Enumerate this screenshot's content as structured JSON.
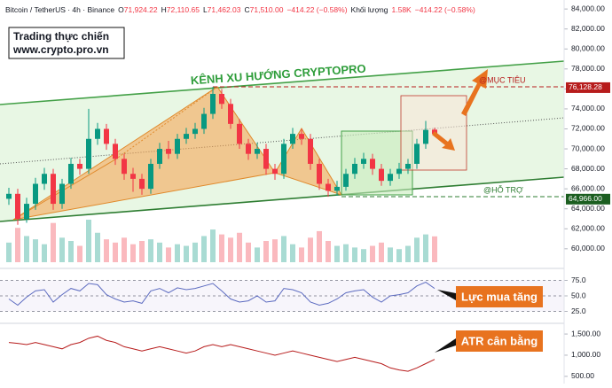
{
  "chart_data": [
    {
      "type": "candlestick",
      "title": "Bitcoin / TetherUS · 4h · Binance",
      "ohlc_legend": [
        "O",
        "71,924.22",
        "H",
        "72,110.65",
        "L",
        "71,462.03",
        "C",
        "71,510.00",
        "−414.22 (−0.58%)",
        "Khối lượng",
        "1.58K",
        "−414.22 (−0.58%)"
      ],
      "annotations": {
        "brand": "Trading thực chiến",
        "website": "www.crypto.pro.vn",
        "channel": "KÊNH XU HƯỚNG CRYPTOPRO",
        "target": "@MỤC TIÊU",
        "support": "@HỖ TRỢ"
      },
      "up_color": "#089981",
      "down_color": "#f23645",
      "open": [
        65000,
        65500,
        63000,
        64500,
        66500,
        67500,
        64500,
        66500,
        68500,
        68000,
        71000,
        72000,
        70500,
        69000,
        67500,
        67000,
        66000,
        68500,
        70000,
        69500,
        71000,
        71500,
        72000,
        73500,
        75500,
        74500,
        72500,
        70500,
        69500,
        70000,
        68000,
        67500,
        70500,
        71500,
        71000,
        68500,
        66500,
        65800,
        66200,
        67500,
        68500,
        69000,
        68000,
        66800,
        67500,
        68000,
        68500,
        70500,
        71924.22
      ],
      "high": [
        66100,
        66000,
        65100,
        67100,
        68100,
        68000,
        67000,
        69100,
        69000,
        74000,
        72600,
        72500,
        71000,
        69500,
        68100,
        67500,
        69000,
        70600,
        70800,
        71500,
        72100,
        72600,
        74100,
        76200,
        76000,
        75000,
        73000,
        71000,
        70600,
        70500,
        68500,
        71000,
        72100,
        72000,
        71500,
        69000,
        67000,
        66800,
        68000,
        69100,
        69600,
        69500,
        68500,
        68000,
        68600,
        69000,
        71000,
        72800,
        72110.65
      ],
      "low": [
        64400,
        62400,
        62600,
        63900,
        65900,
        63900,
        64000,
        66000,
        67400,
        67500,
        70400,
        69900,
        68400,
        66900,
        65700,
        65400,
        65500,
        68000,
        69000,
        69000,
        70500,
        71000,
        71500,
        73000,
        74000,
        72000,
        70000,
        68900,
        69000,
        67400,
        66900,
        67000,
        70000,
        70400,
        67900,
        65900,
        65200,
        65300,
        65800,
        67000,
        68000,
        67400,
        66300,
        66300,
        67000,
        67500,
        68000,
        70000,
        71462.03
      ],
      "close": [
        65500,
        63000,
        64500,
        66500,
        67500,
        64500,
        66500,
        68500,
        68000,
        71000,
        72000,
        70500,
        69000,
        67500,
        67000,
        66000,
        68500,
        70000,
        69500,
        71000,
        71500,
        72000,
        73500,
        75500,
        74500,
        72500,
        70500,
        69500,
        70000,
        68000,
        67500,
        70500,
        71500,
        71000,
        68500,
        66500,
        65800,
        66200,
        67500,
        68500,
        69000,
        68000,
        66800,
        67500,
        68000,
        68500,
        70500,
        71900,
        71510
      ],
      "volume": [
        1.2,
        2.1,
        1.6,
        1.4,
        1.1,
        2.4,
        1.5,
        1.3,
        1.0,
        2.6,
        1.8,
        1.4,
        1.2,
        1.5,
        1.1,
        1.3,
        1.4,
        1.2,
        0.9,
        1.1,
        1.0,
        1.2,
        1.6,
        2.0,
        1.7,
        1.5,
        1.8,
        1.2,
        0.9,
        1.3,
        1.4,
        1.6,
        1.1,
        0.9,
        1.5,
        1.9,
        1.3,
        1.0,
        1.1,
        0.9,
        0.8,
        1.0,
        1.2,
        0.9,
        0.8,
        1.0,
        1.5,
        1.7,
        1.58
      ],
      "ylim": [
        58300,
        84900
      ],
      "yticks": [
        {
          "value": 60000,
          "label": "60,000.00"
        },
        {
          "value": 62000,
          "label": "62,000.00"
        },
        {
          "value": 64000,
          "label": "64,000.00"
        },
        {
          "value": 66000,
          "label": "66,000.00"
        },
        {
          "value": 68000,
          "label": "68,000.00"
        },
        {
          "value": 70000,
          "label": "70,000.00"
        },
        {
          "value": 72000,
          "label": "72,000.00"
        },
        {
          "value": 74000,
          "label": "74,000.00"
        },
        {
          "value": 76000,
          "label": "76,000.00"
        },
        {
          "value": 78000,
          "label": "78,000.00"
        },
        {
          "value": 80000,
          "label": "80,000.00"
        },
        {
          "value": 82000,
          "label": "82,000.00"
        },
        {
          "value": 84000,
          "label": "84,000.00"
        }
      ],
      "price_tags": [
        {
          "value": 76128.28,
          "label": "76,128.28",
          "color": "#b71c1c"
        },
        {
          "value": 64966,
          "label": "64,966.00",
          "color": "#1b5e20"
        }
      ]
    },
    {
      "type": "line",
      "annotation": "Lực mua tăng",
      "color": "#5c6bc0",
      "values": [
        45,
        35,
        48,
        58,
        60,
        40,
        52,
        62,
        58,
        70,
        68,
        52,
        45,
        40,
        42,
        38,
        58,
        62,
        55,
        63,
        60,
        62,
        66,
        70,
        58,
        45,
        40,
        42,
        50,
        40,
        42,
        62,
        60,
        55,
        40,
        35,
        38,
        45,
        55,
        58,
        60,
        48,
        40,
        50,
        52,
        55,
        66,
        72,
        62
      ],
      "ylim": [
        10,
        90
      ],
      "yticks": [
        {
          "value": 75,
          "label": "75.0"
        },
        {
          "value": 50,
          "label": "50.0"
        },
        {
          "value": 25,
          "label": "25.0"
        }
      ]
    },
    {
      "type": "line",
      "annotation": "ATR cân bằng",
      "color": "#b71c1c",
      "values": [
        1300,
        1280,
        1250,
        1300,
        1250,
        1200,
        1150,
        1250,
        1300,
        1400,
        1450,
        1350,
        1300,
        1200,
        1150,
        1100,
        1150,
        1200,
        1150,
        1100,
        1050,
        1100,
        1200,
        1250,
        1200,
        1250,
        1200,
        1150,
        1100,
        1050,
        1000,
        1050,
        1100,
        1050,
        1000,
        950,
        900,
        850,
        900,
        950,
        900,
        850,
        800,
        700,
        650,
        620,
        700,
        800,
        900
      ],
      "ylim": [
        350,
        1690
      ],
      "yticks": [
        {
          "value": 1500,
          "label": "1,500.00"
        },
        {
          "value": 1000,
          "label": "1,000.00"
        },
        {
          "value": 500,
          "label": "500.00"
        }
      ]
    }
  ]
}
